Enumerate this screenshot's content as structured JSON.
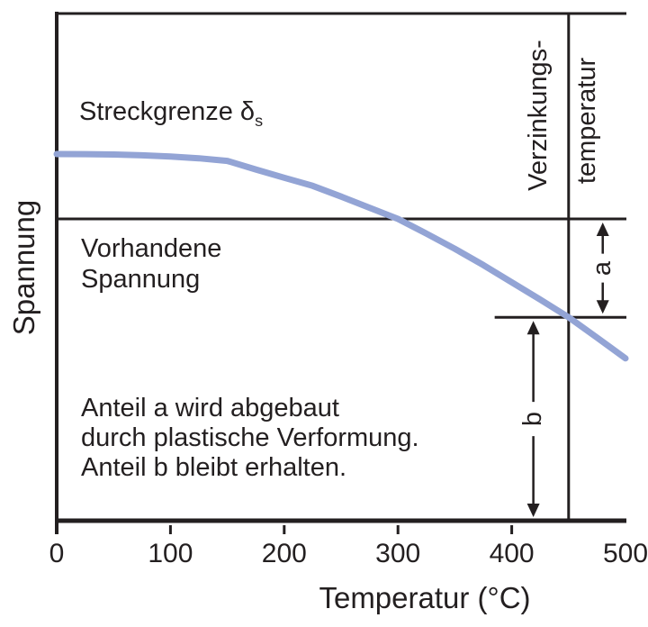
{
  "figure": {
    "background": "#ffffff",
    "text_color": "#231f20",
    "line_color": "#231f20",
    "curve_color": "#93a4d5"
  },
  "chart_data": {
    "type": "line",
    "title": "",
    "xlabel": "Temperatur (°C)",
    "ylabel": "Spannung",
    "xlim": [
      0,
      500
    ],
    "x_ticks": [
      0,
      100,
      200,
      300,
      400,
      500
    ],
    "x_tick_labels": [
      "0",
      "100",
      "200",
      "300",
      "400",
      "500"
    ],
    "y_axis_ticks": "none (qualitative axis)",
    "grid": "off",
    "series": [
      {
        "name": "Streckgrenze δs",
        "color": "#93a4d5",
        "x": [
          0,
          25,
          50,
          75,
          100,
          125,
          150,
          175,
          200,
          225,
          250,
          275,
          300,
          325,
          350,
          375,
          400,
          425,
          450,
          475,
          500
        ],
        "y_rel": [
          0.723,
          0.7228,
          0.722,
          0.7205,
          0.718,
          0.7145,
          0.7095,
          0.6926,
          0.6762,
          0.6602,
          0.639,
          0.617,
          0.595,
          0.566,
          0.536,
          0.504,
          0.47,
          0.436,
          0.401,
          0.361,
          0.32
        ]
      }
    ],
    "reference_lines": {
      "vorhandene_spannung": {
        "orientation": "horizontal",
        "y_rel": 0.595,
        "label": "Vorhandene Spannung"
      },
      "level_b": {
        "orientation": "horizontal",
        "y_rel": 0.401,
        "x_start_deg": 385
      },
      "verzinkungstemperatur": {
        "orientation": "vertical",
        "x_deg": 450,
        "label": "Verzinkungs- temperatur"
      }
    },
    "arrows": [
      {
        "label": "a",
        "x_deg": 480,
        "from_y_rel": 0.595,
        "to_y_rel": 0.401,
        "letter_gap": 16
      },
      {
        "label": "b",
        "x_deg": 419,
        "from_y_rel": 0.401,
        "to_y_rel": 0.0,
        "letter_gap": 19
      }
    ]
  },
  "labels": {
    "y_axis": "Spannung",
    "x_axis": "Temperatur (°C)",
    "streckgrenze": "Streckgrenze δ",
    "streckgrenze_sub": "s",
    "vorhandene_line1": "Vorhandene",
    "vorhandene_line2": "Spannung",
    "verzinkungs_line1": "Verzinkungs-",
    "verzinkungs_line2": "temperatur",
    "note_line1": "Anteil a wird abgebaut",
    "note_line2": "durch plastische Verformung.",
    "note_line3": "Anteil b bleibt erhalten.",
    "arrow_a": "a",
    "arrow_b": "b"
  }
}
